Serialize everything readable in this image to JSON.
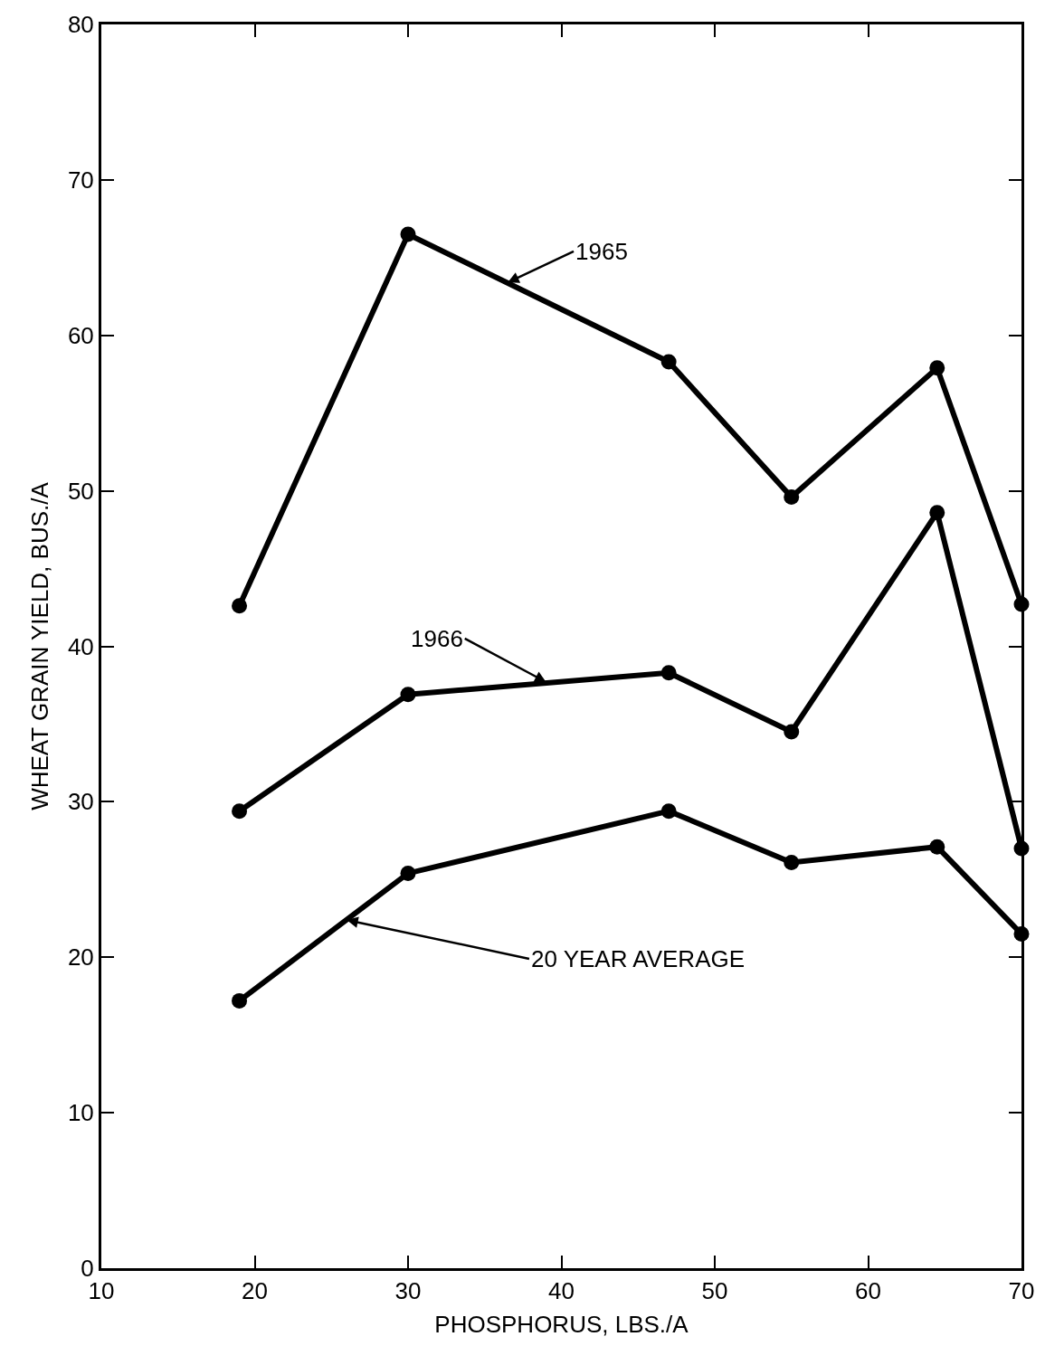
{
  "chart_data": {
    "type": "line",
    "xlabel": "PHOSPHORUS, LBS./A",
    "ylabel": "WHEAT GRAIN YIELD, BUS./A",
    "x": [
      19,
      30,
      47,
      55,
      64.5,
      70
    ],
    "series": [
      {
        "color": "#000000",
        "values": [
          42.6,
          66.5,
          58.3,
          49.6,
          57.9,
          42.7
        ]
      },
      {
        "color": "#000000",
        "values": [
          29.4,
          36.9,
          38.3,
          34.5,
          48.6,
          27.0
        ]
      },
      {
        "color": "#000000",
        "values": [
          17.2,
          25.4,
          29.4,
          26.1,
          27.1,
          21.5
        ]
      }
    ],
    "annotations": [
      {
        "text": "1965",
        "x": 36.5,
        "y": 63.4
      },
      {
        "text": "1966",
        "x": 39,
        "y": 37.7
      },
      {
        "text": "20 YEAR AVERAGE",
        "x": 26,
        "y": 22.4
      }
    ],
    "xlim": [
      10,
      70
    ],
    "xticks": [
      10,
      20,
      30,
      40,
      50,
      60,
      70
    ],
    "ylim": [
      0,
      80
    ],
    "yticks": [
      0,
      10,
      20,
      30,
      40,
      50,
      60,
      70,
      80
    ],
    "marker": "circle",
    "line_style": "solid"
  }
}
